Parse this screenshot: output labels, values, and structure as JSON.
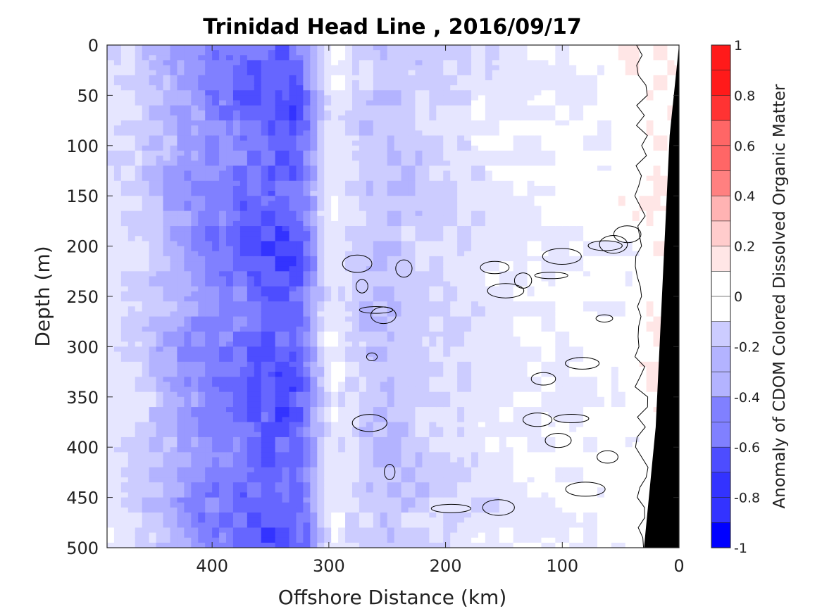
{
  "chart_data": {
    "type": "heatmap",
    "title": "Trinidad Head Line , 2016/09/17",
    "xlabel": "Offshore Distance (km)",
    "ylabel": "Depth (m)",
    "colorbar_label": "Anomaly of CDOM Colored Dissolved Organic Matter",
    "x_axis": {
      "lim": [
        490,
        0
      ],
      "reversed": true,
      "ticks": [
        400,
        300,
        200,
        100,
        0
      ]
    },
    "y_axis": {
      "lim": [
        0,
        500
      ],
      "reversed": true,
      "ticks": [
        0,
        50,
        100,
        150,
        200,
        250,
        300,
        350,
        400,
        450,
        500
      ]
    },
    "colorbar": {
      "lim": [
        -1,
        1
      ],
      "step": 0.1,
      "tick_labels": [
        "1",
        "0.8",
        "0.6",
        "0.4",
        "0.2",
        "0",
        "-0.2",
        "-0.4",
        "-0.6",
        "-0.8",
        "-1"
      ],
      "tick_values": [
        1,
        0.8,
        0.6,
        0.4,
        0.2,
        0,
        -0.2,
        -0.4,
        -0.6,
        -0.8,
        -1
      ]
    },
    "colormap": {
      "negative": "#0000ff",
      "zero": "#ffffff",
      "positive": "#ff0000"
    },
    "grid": false,
    "x_profile_km": [
      490,
      470,
      450,
      430,
      410,
      390,
      370,
      350,
      330,
      320,
      310,
      300,
      290,
      270,
      250,
      230,
      200,
      170,
      150,
      120,
      100,
      80,
      60,
      40,
      20,
      0
    ],
    "profile_anomaly": [
      -0.1,
      -0.15,
      -0.25,
      -0.35,
      -0.45,
      -0.5,
      -0.58,
      -0.65,
      -0.62,
      -0.45,
      -0.22,
      -0.05,
      -0.12,
      -0.22,
      -0.25,
      -0.2,
      -0.15,
      -0.1,
      -0.08,
      -0.05,
      -0.05,
      -0.03,
      -0.02,
      0.0,
      0.05,
      0.0
    ],
    "bottom_mask_km": [
      [
        0,
        0
      ],
      [
        8,
        90
      ],
      [
        20,
        380
      ],
      [
        30,
        500
      ]
    ],
    "zero_contour_color": "#000000",
    "land_mask_color": "#000000"
  }
}
